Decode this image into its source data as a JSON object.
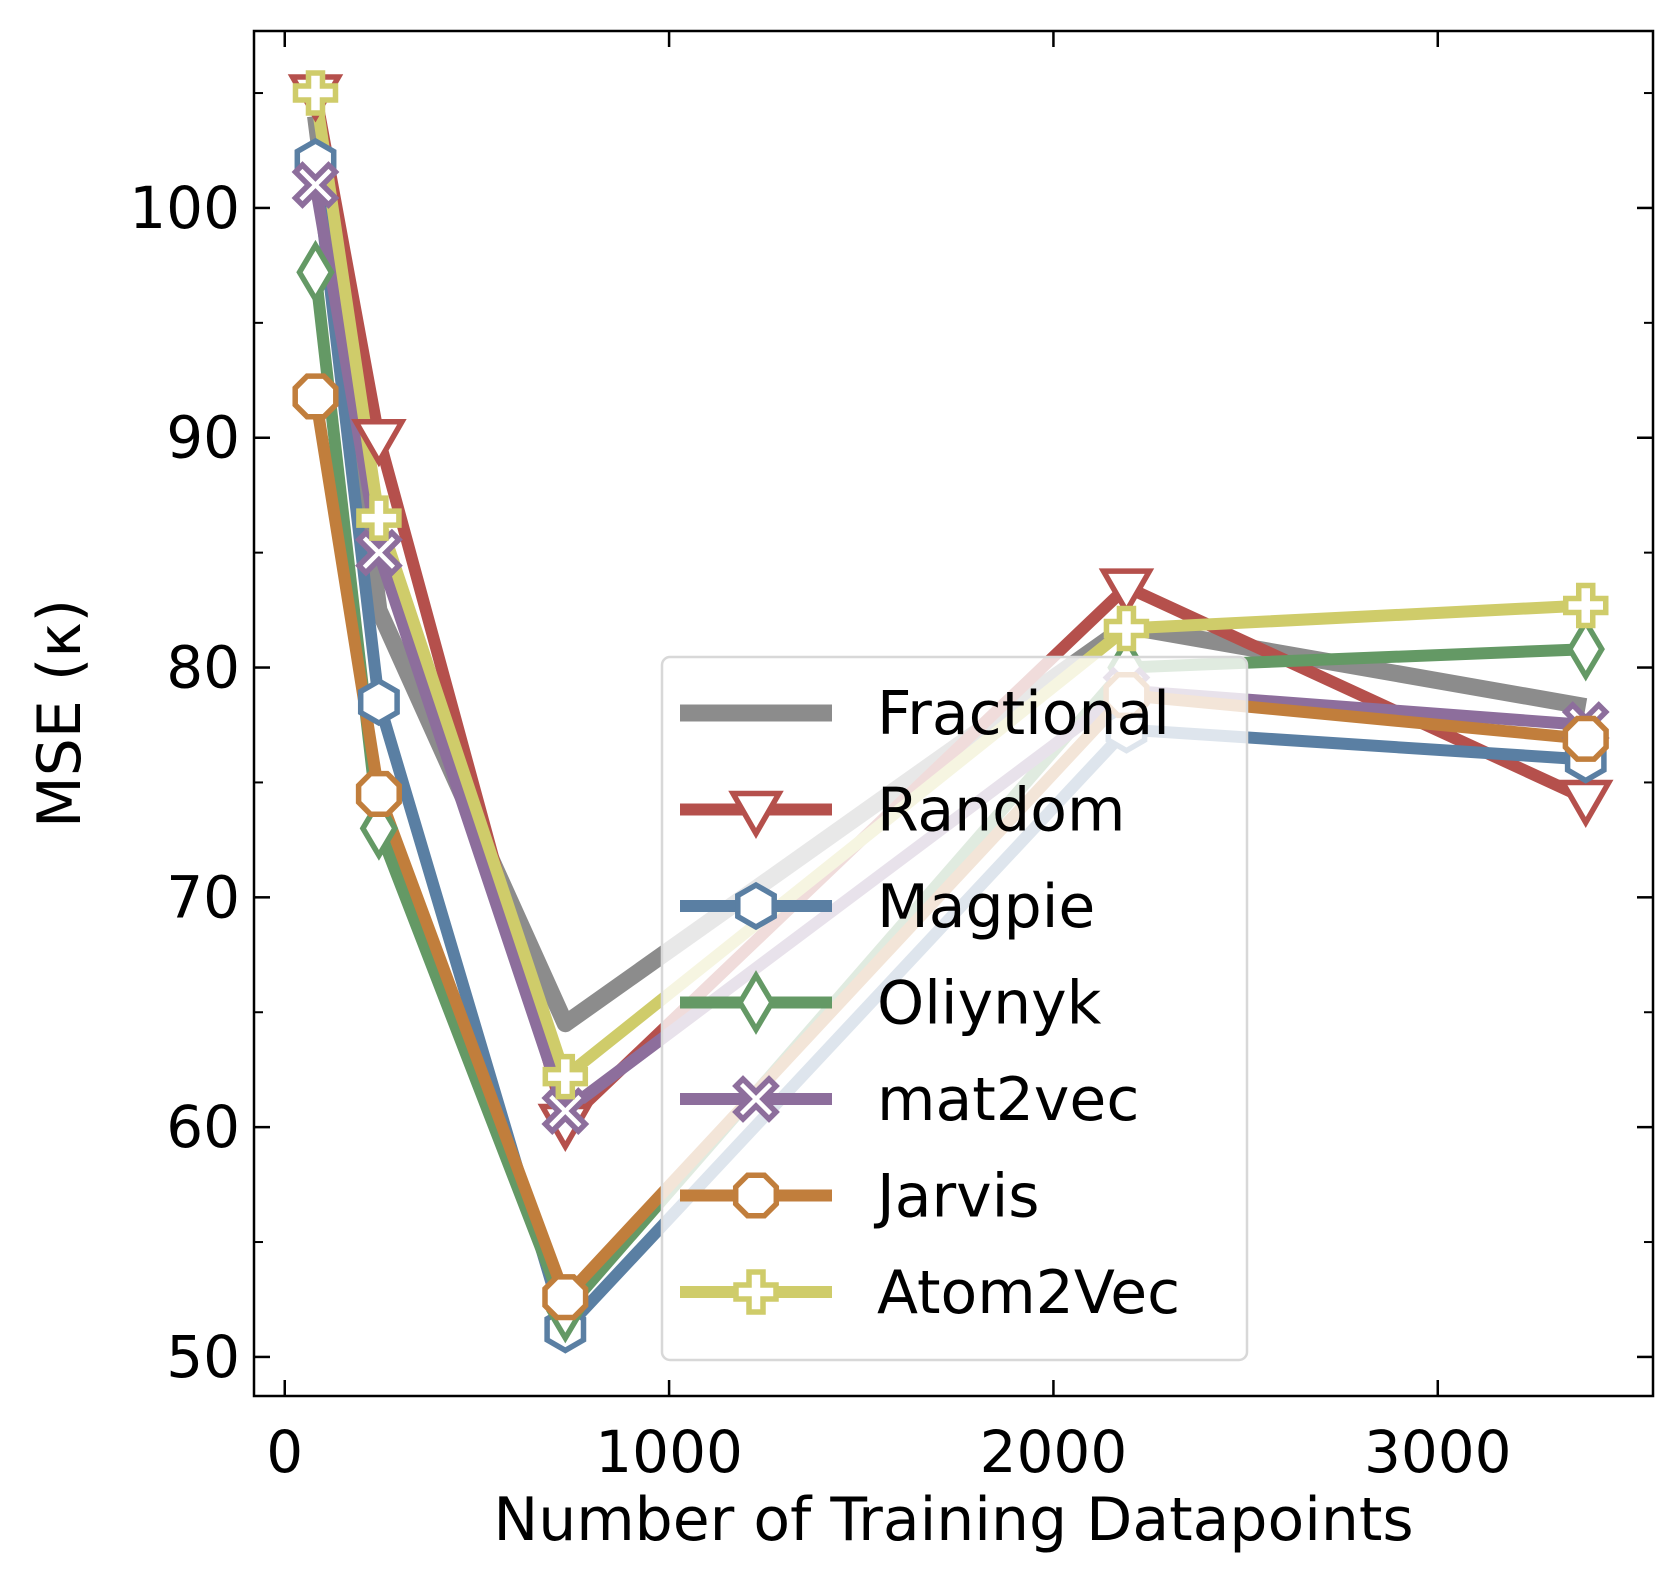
{
  "chart_data": {
    "type": "line",
    "xlabel": "Number of Training Datapoints",
    "ylabel": "MSE (κ)",
    "xlim": [
      -80,
      3560
    ],
    "ylim": [
      48.3,
      107.7
    ],
    "x_ticks": [
      0,
      1000,
      2000,
      3000
    ],
    "x_tick_labels": [
      "0",
      "1000",
      "2000",
      "3000"
    ],
    "y_ticks": [
      50,
      60,
      70,
      80,
      90,
      100
    ],
    "y_tick_labels": [
      "50",
      "60",
      "70",
      "80",
      "90",
      "100"
    ],
    "x": [
      80,
      245,
      730,
      2190,
      3385
    ],
    "grid": false,
    "legend_position": "lower-center",
    "series": [
      {
        "name": "Fractional",
        "marker": "none",
        "color": "#8c8c8c",
        "values": [
          104.0,
          82.5,
          64.5,
          81.8,
          78.3
        ]
      },
      {
        "name": "Random",
        "marker": "triangle-down",
        "color": "#b5504c",
        "values": [
          105.0,
          90.0,
          60.2,
          83.5,
          74.3
        ]
      },
      {
        "name": "Magpie",
        "marker": "hexagon",
        "color": "#5a7fa3",
        "values": [
          102.0,
          78.5,
          51.2,
          77.3,
          76.0
        ]
      },
      {
        "name": "Oliynyk",
        "marker": "thin-diamond",
        "color": "#649965",
        "values": [
          97.2,
          73.0,
          52.0,
          80.0,
          80.8
        ]
      },
      {
        "name": "mat2vec",
        "marker": "x-filled",
        "color": "#8d6e9c",
        "values": [
          101.0,
          85.0,
          60.7,
          79.0,
          77.5
        ]
      },
      {
        "name": "Jarvis",
        "marker": "octagon",
        "color": "#c17e3c",
        "values": [
          91.8,
          74.5,
          52.6,
          78.8,
          76.9
        ]
      },
      {
        "name": "Atom2Vec",
        "marker": "plus-filled",
        "color": "#cfcc6a",
        "values": [
          105.0,
          86.5,
          62.2,
          81.7,
          82.7
        ]
      }
    ]
  }
}
